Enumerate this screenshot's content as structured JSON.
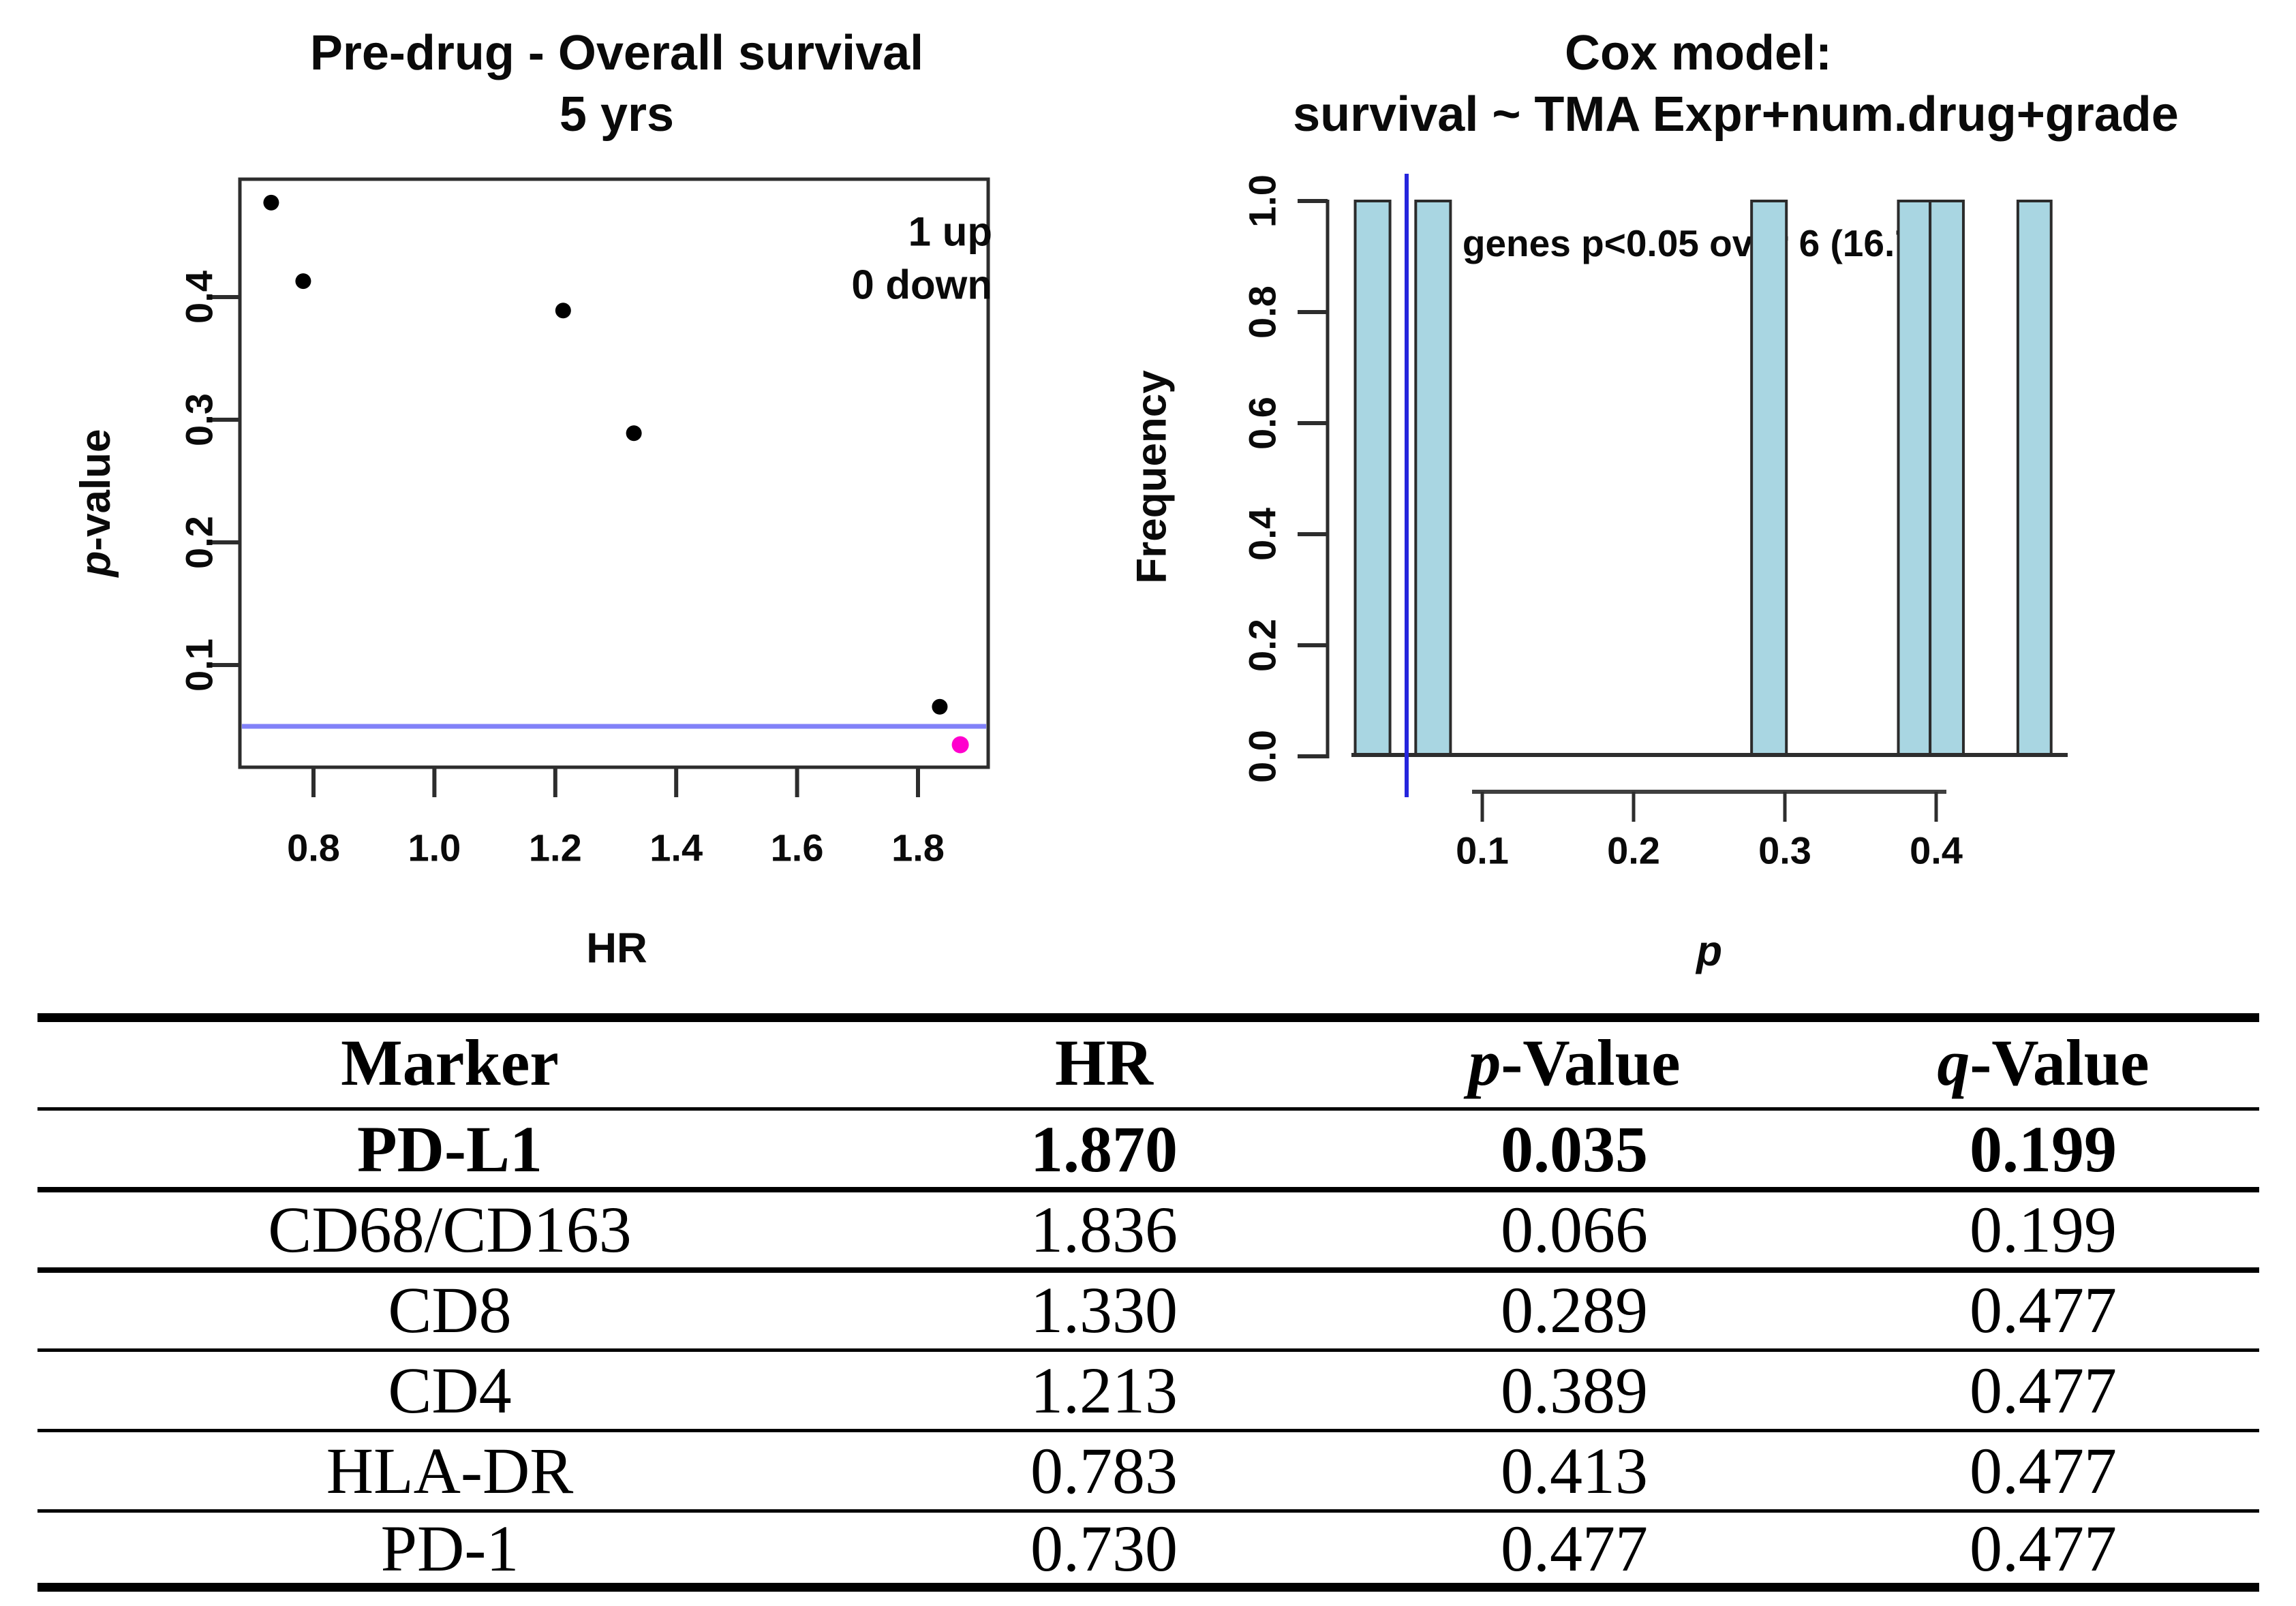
{
  "chart_data": [
    {
      "type": "scatter",
      "title_lines": [
        "Pre-drug - Overall survival",
        "5 yrs"
      ],
      "xlabel": "HR",
      "ylabel_italic": "p",
      "ylabel_rest": "-value",
      "xlim": [
        0.68,
        1.92
      ],
      "ylim": [
        0.017,
        0.496
      ],
      "xticks": [
        0.8,
        1.0,
        1.2,
        1.4,
        1.6,
        1.8
      ],
      "xtick_labels": [
        "0.8",
        "1.0",
        "1.2",
        "1.4",
        "1.6",
        "1.8"
      ],
      "yticks": [
        0.1,
        0.2,
        0.3,
        0.4
      ],
      "ytick_labels": [
        "0.1",
        "0.2",
        "0.3",
        "0.4"
      ],
      "annotation_lines": [
        "1 up",
        "0 down"
      ],
      "significance_line": {
        "p": 0.05,
        "color": "#8181f8"
      },
      "point_color_default": "#000000",
      "points": [
        {
          "marker": "PD-1",
          "hr": 0.73,
          "p": 0.477,
          "color": "#000000",
          "significant": false
        },
        {
          "marker": "HLA-DR",
          "hr": 0.783,
          "p": 0.413,
          "color": "#000000",
          "significant": false
        },
        {
          "marker": "CD4",
          "hr": 1.213,
          "p": 0.389,
          "color": "#000000",
          "significant": false
        },
        {
          "marker": "CD8",
          "hr": 1.33,
          "p": 0.289,
          "color": "#000000",
          "significant": false
        },
        {
          "marker": "CD68/CD163",
          "hr": 1.836,
          "p": 0.066,
          "color": "#000000",
          "significant": false
        },
        {
          "marker": "PD-L1",
          "hr": 1.87,
          "p": 0.035,
          "color": "#ff00cd",
          "significant": true
        }
      ]
    },
    {
      "type": "bar",
      "subtype": "histogram",
      "title_lines": [
        "Cox model:",
        "survival ~ TMA Expr+num.drug+grade"
      ],
      "xlabel": "p",
      "ylabel": "Frequency",
      "xticks": [
        0.1,
        0.2,
        0.3,
        0.4
      ],
      "xtick_labels": [
        "0.1",
        "0.2",
        "0.3",
        "0.4"
      ],
      "yticks": [
        0.0,
        0.2,
        0.4,
        0.6,
        0.8,
        1.0
      ],
      "ytick_labels": [
        "0.0",
        "0.2",
        "0.4",
        "0.6",
        "0.8",
        "1.0"
      ],
      "ylim": [
        0,
        1.0
      ],
      "annotation": "1 genes p<0.05 over 6 (16.7%)",
      "significance_line": {
        "p": 0.05,
        "color": "#2525dd"
      },
      "bar_fill": "#a9d6e2",
      "bar_border": "#2b2b2b",
      "bars": [
        {
          "p_from": 0.016,
          "p_to": 0.039,
          "frequency": 1.0
        },
        {
          "p_from": 0.056,
          "p_to": 0.079,
          "frequency": 1.0
        },
        {
          "p_from": 0.278,
          "p_to": 0.301,
          "frequency": 1.0
        },
        {
          "p_from": 0.375,
          "p_to": 0.396,
          "frequency": 1.0
        },
        {
          "p_from": 0.396,
          "p_to": 0.418,
          "frequency": 1.0
        },
        {
          "p_from": 0.454,
          "p_to": 0.476,
          "frequency": 1.0
        }
      ]
    }
  ],
  "table": {
    "columns": [
      {
        "italic_prefix": "",
        "text": "Marker"
      },
      {
        "italic_prefix": "",
        "text": "HR"
      },
      {
        "italic_prefix": "p",
        "text": "-Value"
      },
      {
        "italic_prefix": "q",
        "text": "-Value"
      }
    ],
    "rows": [
      {
        "cells": [
          "PD-L1",
          "1.870",
          "0.035",
          "0.199"
        ],
        "bold": true
      },
      {
        "cells": [
          "CD68/CD163",
          "1.836",
          "0.066",
          "0.199"
        ],
        "bold": false
      },
      {
        "cells": [
          "CD8",
          "1.330",
          "0.289",
          "0.477"
        ],
        "bold": false
      },
      {
        "cells": [
          "CD4",
          "1.213",
          "0.389",
          "0.477"
        ],
        "bold": false
      },
      {
        "cells": [
          "HLA-DR",
          "0.783",
          "0.413",
          "0.477"
        ],
        "bold": false
      },
      {
        "cells": [
          "PD-1",
          "0.730",
          "0.477",
          "0.477"
        ],
        "bold": false
      }
    ]
  }
}
